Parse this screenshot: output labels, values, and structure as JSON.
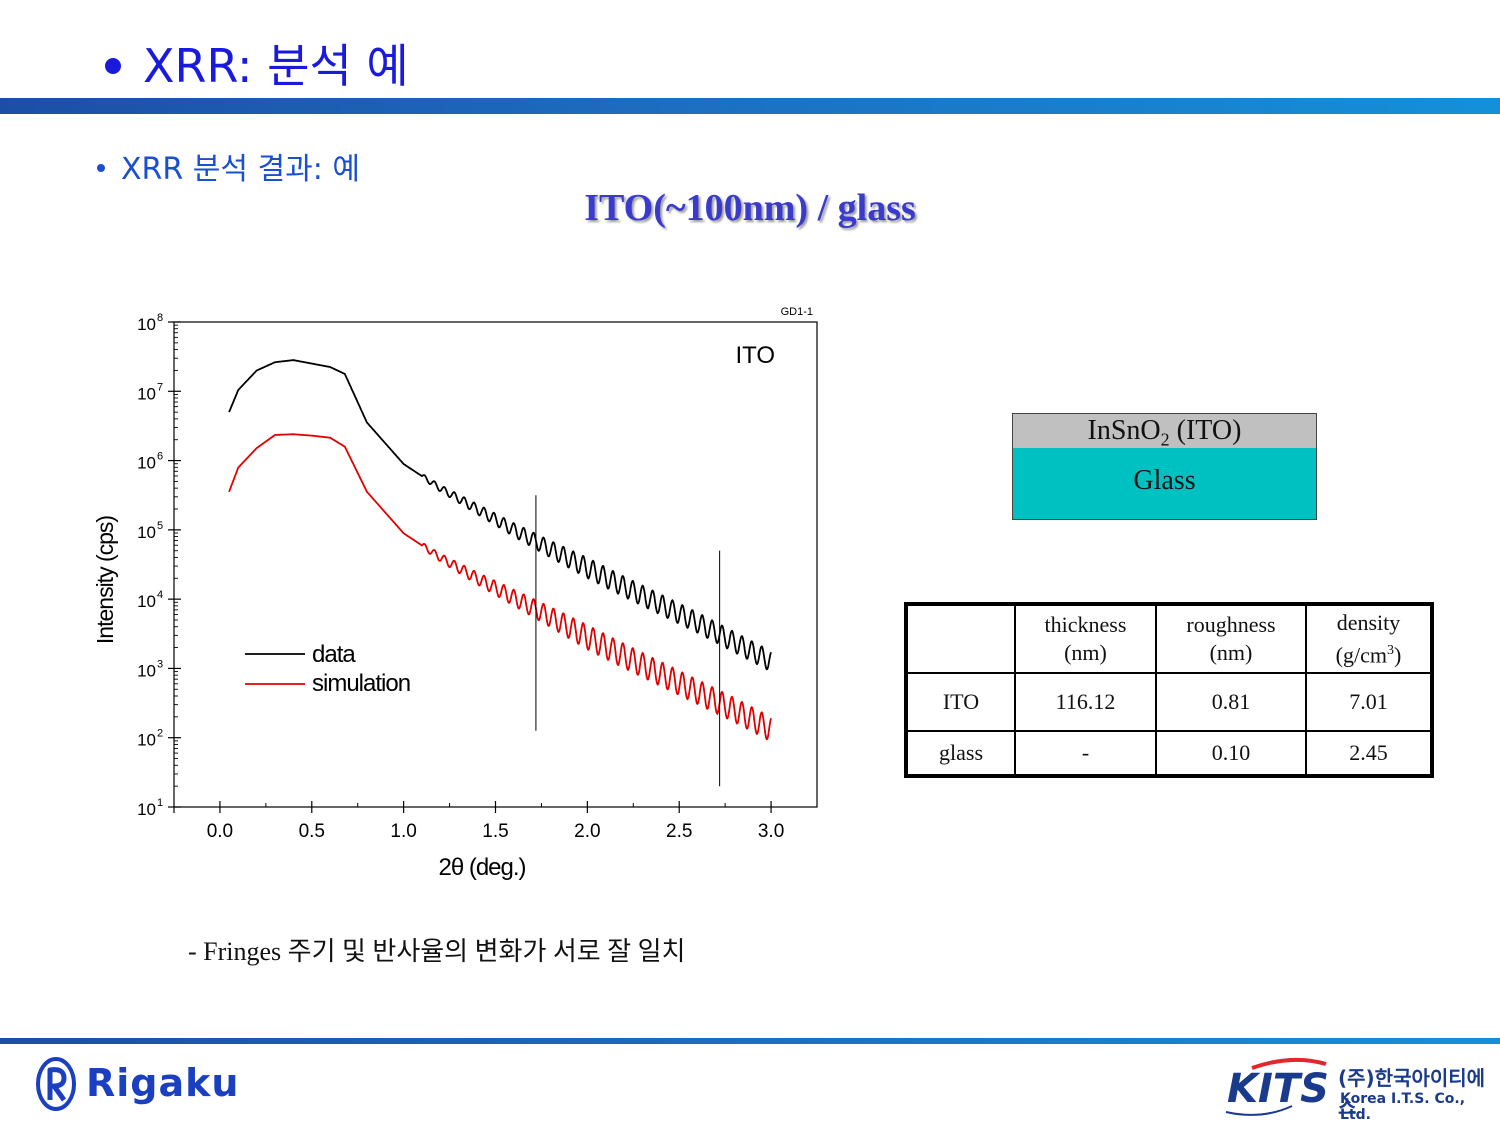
{
  "slide": {
    "title": "XRR: 분석 예",
    "subtitle": "XRR 분석 결과: 예",
    "sample_title": "ITO(~100nm) / glass",
    "note": "- Fringes 주기 및 반사율의 변화가 서로 잘 일치"
  },
  "layers": {
    "top_main": "InSnO",
    "top_sub": "2",
    "top_tail": " (ITO)",
    "bottom": "Glass",
    "top_color": "#c0c0c0",
    "bottom_color": "#00c1c1"
  },
  "table": {
    "headers": [
      {
        "line1": "",
        "line2": ""
      },
      {
        "line1": "thickness",
        "line2": "(nm)"
      },
      {
        "line1": "roughness",
        "line2": "(nm)"
      },
      {
        "line1": "density",
        "line2": "(g/cm",
        "sup": "3",
        "tail": ")"
      }
    ],
    "rows": [
      {
        "layer": "ITO",
        "thickness": "116.12",
        "roughness": "0.81",
        "density": "7.01"
      },
      {
        "layer": "glass",
        "thickness": "-",
        "roughness": "0.10",
        "density": "2.45"
      }
    ]
  },
  "chart_data": {
    "type": "line",
    "corner_label": "GD1-1",
    "annotation": "ITO",
    "xlabel": "2θ (deg.)",
    "ylabel": "Intensity (cps)",
    "xlim": [
      -0.25,
      3.25
    ],
    "ylim_exp": [
      1,
      8
    ],
    "yscale": "log",
    "x_ticks": [
      "0.0",
      "0.5",
      "1.0",
      "1.5",
      "2.0",
      "2.5",
      "3.0"
    ],
    "y_ticks": [
      {
        "base": "10",
        "exp": "1"
      },
      {
        "base": "10",
        "exp": "2"
      },
      {
        "base": "10",
        "exp": "3"
      },
      {
        "base": "10",
        "exp": "4"
      },
      {
        "base": "10",
        "exp": "5"
      },
      {
        "base": "10",
        "exp": "6"
      },
      {
        "base": "10",
        "exp": "7"
      },
      {
        "base": "10",
        "exp": "8"
      }
    ],
    "legend_position": "center-left",
    "grid": false,
    "series": [
      {
        "name": "data",
        "color": "#000000",
        "x": [
          0.05,
          0.1,
          0.2,
          0.3,
          0.4,
          0.5,
          0.6,
          0.68,
          0.8,
          1.0,
          1.2,
          1.4,
          1.6,
          1.8,
          2.0,
          2.2,
          2.4,
          2.6,
          2.8,
          3.0
        ],
        "log10_y": [
          6.7,
          7.02,
          7.3,
          7.42,
          7.45,
          7.4,
          7.35,
          7.25,
          6.55,
          5.95,
          5.6,
          5.3,
          5.0,
          4.72,
          4.45,
          4.18,
          3.92,
          3.66,
          3.38,
          3.1
        ],
        "fringe_amp": 0.1,
        "fringe_period": 0.054,
        "fringe_start": 1.1
      },
      {
        "name": "simulation",
        "color": "#e00000",
        "x": [
          0.05,
          0.1,
          0.2,
          0.3,
          0.4,
          0.5,
          0.6,
          0.68,
          0.8,
          1.0,
          1.2,
          1.4,
          1.6,
          1.8,
          2.0,
          2.2,
          2.4,
          2.6,
          2.8,
          3.0
        ],
        "log10_y": [
          5.55,
          5.9,
          6.18,
          6.37,
          6.38,
          6.36,
          6.33,
          6.2,
          5.55,
          4.95,
          4.6,
          4.3,
          4.02,
          3.74,
          3.45,
          3.18,
          2.92,
          2.66,
          2.4,
          2.12
        ],
        "fringe_amp": 0.12,
        "fringe_period": 0.054,
        "fringe_start": 1.1
      }
    ],
    "markers": [
      {
        "x": 1.72,
        "log10_y_low": 2.1,
        "log10_y_high": 5.5
      },
      {
        "x": 2.72,
        "log10_y_low": 1.3,
        "log10_y_high": 4.7
      }
    ]
  },
  "logos": {
    "rigaku": "Rigaku",
    "kits": "KITS",
    "kits_korean": "(주)한국아이티에스",
    "kits_english": "Korea I.T.S. Co., Ltd."
  }
}
